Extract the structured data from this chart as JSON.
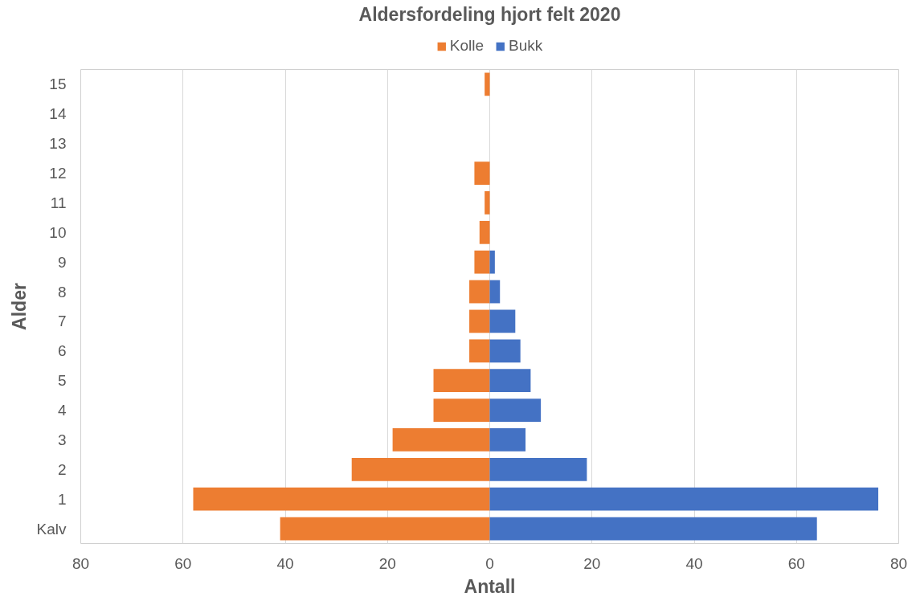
{
  "chart_data": {
    "type": "bar",
    "orientation": "horizontal",
    "stacked": true,
    "title": "Aldersfordeling hjort felt 2020",
    "xlabel": "Antall",
    "ylabel": "Alder",
    "categories": [
      "15",
      "14",
      "13",
      "12",
      "11",
      "10",
      "9",
      "8",
      "7",
      "6",
      "5",
      "4",
      "3",
      "2",
      "1",
      "Kalv"
    ],
    "series": [
      {
        "name": "Kolle",
        "color": "#ed7d31",
        "values": [
          -1,
          null,
          null,
          -3,
          -1,
          -2,
          -3,
          -4,
          -4,
          -4,
          -11,
          -11,
          -19,
          -27,
          -58,
          -41
        ]
      },
      {
        "name": "Bukk",
        "color": "#4472c4",
        "values": [
          null,
          null,
          null,
          null,
          null,
          null,
          1,
          2,
          5,
          6,
          8,
          10,
          7,
          19,
          76,
          64
        ]
      }
    ],
    "xlim": [
      -80,
      80
    ],
    "xticks": [
      {
        "value": -80,
        "label": "80"
      },
      {
        "value": -60,
        "label": "60"
      },
      {
        "value": -40,
        "label": "40"
      },
      {
        "value": -20,
        "label": "20"
      },
      0,
      20,
      40,
      60,
      80
    ],
    "grid": "x",
    "legend": "top"
  }
}
